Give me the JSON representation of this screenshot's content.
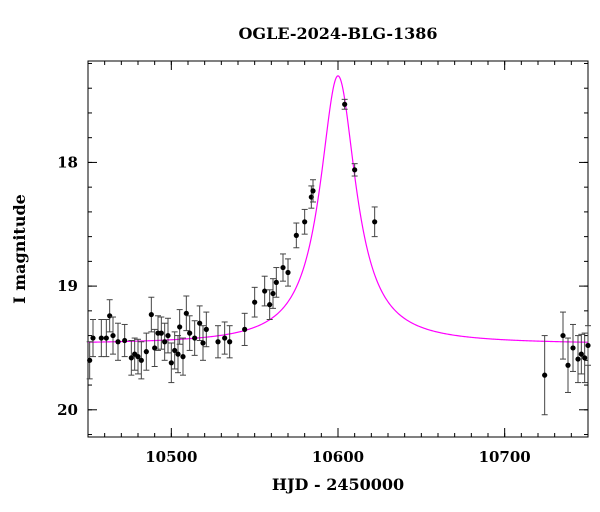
{
  "chart_data": {
    "type": "scatter",
    "title": "OGLE-2024-BLG-1386",
    "xlabel": "HJD - 2450000",
    "ylabel": "I magnitude",
    "xlim": [
      10450,
      10750
    ],
    "ylim": [
      20.22,
      17.18
    ],
    "y_inverted": true,
    "x_ticks": [
      10500,
      10600,
      10700
    ],
    "y_ticks": [
      18,
      19,
      20
    ],
    "grid": false,
    "legend": "none",
    "colors": {
      "points": "#000000",
      "model": "#ff00ff",
      "frame": "#000000"
    },
    "model_curve": {
      "baseline_mag": 19.47,
      "peak_mag": 17.3,
      "peak_time": 10600,
      "width": 13
    },
    "series": [
      {
        "points": [
          [
            10451,
            19.6,
            0.15
          ],
          [
            10453,
            19.42,
            0.15
          ],
          [
            10458,
            19.42,
            0.15
          ],
          [
            10461,
            19.42,
            0.15
          ],
          [
            10463,
            19.24,
            0.13
          ],
          [
            10465,
            19.4,
            0.15
          ],
          [
            10468,
            19.45,
            0.15
          ],
          [
            10472,
            19.44,
            0.13
          ],
          [
            10476,
            19.58,
            0.14
          ],
          [
            10478,
            19.55,
            0.13
          ],
          [
            10480,
            19.57,
            0.14
          ],
          [
            10482,
            19.6,
            0.15
          ],
          [
            10485,
            19.53,
            0.15
          ],
          [
            10488,
            19.23,
            0.14
          ],
          [
            10490,
            19.5,
            0.15
          ],
          [
            10492,
            19.38,
            0.14
          ],
          [
            10494,
            19.38,
            0.13
          ],
          [
            10496,
            19.45,
            0.15
          ],
          [
            10498,
            19.4,
            0.14
          ],
          [
            10500,
            19.62,
            0.16
          ],
          [
            10502,
            19.52,
            0.15
          ],
          [
            10504,
            19.55,
            0.15
          ],
          [
            10505,
            19.33,
            0.14
          ],
          [
            10507,
            19.57,
            0.15
          ],
          [
            10509,
            19.22,
            0.14
          ],
          [
            10511,
            19.38,
            0.14
          ],
          [
            10514,
            19.42,
            0.14
          ],
          [
            10517,
            19.3,
            0.14
          ],
          [
            10519,
            19.46,
            0.14
          ],
          [
            10521,
            19.35,
            0.14
          ],
          [
            10528,
            19.45,
            0.13
          ],
          [
            10532,
            19.42,
            0.13
          ],
          [
            10535,
            19.45,
            0.13
          ],
          [
            10544,
            19.35,
            0.13
          ],
          [
            10550,
            19.13,
            0.12
          ],
          [
            10556,
            19.04,
            0.12
          ],
          [
            10559,
            19.15,
            0.12
          ],
          [
            10561,
            19.06,
            0.12
          ],
          [
            10563,
            18.97,
            0.12
          ],
          [
            10567,
            18.85,
            0.11
          ],
          [
            10570,
            18.89,
            0.11
          ],
          [
            10575,
            18.59,
            0.1
          ],
          [
            10580,
            18.48,
            0.1
          ],
          [
            10584,
            18.28,
            0.09
          ],
          [
            10585,
            18.23,
            0.09
          ],
          [
            10604,
            17.53,
            0.04
          ],
          [
            10610,
            18.06,
            0.05
          ],
          [
            10622,
            18.48,
            0.12
          ],
          [
            10724,
            19.72,
            0.32
          ],
          [
            10735,
            19.4,
            0.19
          ],
          [
            10738,
            19.64,
            0.22
          ],
          [
            10741,
            19.5,
            0.19
          ],
          [
            10744,
            19.59,
            0.19
          ],
          [
            10746,
            19.55,
            0.16
          ],
          [
            10748,
            19.58,
            0.2
          ],
          [
            10750,
            19.48,
            0.16
          ]
        ]
      }
    ]
  }
}
